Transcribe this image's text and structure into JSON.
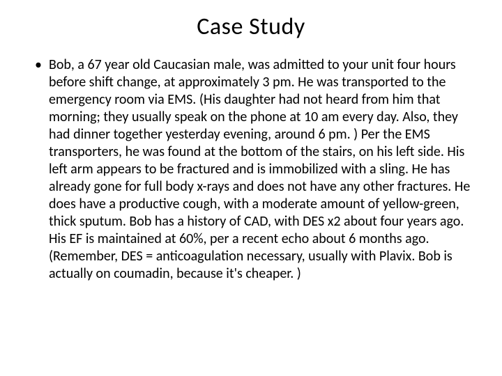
{
  "slide": {
    "title": "Case Study",
    "bullet_glyph": "•",
    "body_text": "Bob, a 67 year old Caucasian male, was admitted to your unit four hours before shift change, at approximately 3 pm. He was transported to the emergency room via EMS. (His daughter had not heard from him that morning; they usually speak on the phone at 10 am every day. Also, they had dinner together yesterday evening, around 6 pm. ) Per the EMS transporters, he was found at the bottom of the stairs, on his left side. His left arm appears to be fractured and is immobilized with a sling. He has already gone for full body x-rays and does not have any other fractures. He does have a productive cough, with a moderate amount of yellow-green, thick sputum. Bob has a history of CAD, with DES x2 about four years ago. His EF is maintained at 60%, per a recent echo about 6 months ago. (Remember, DES = anticoagulation necessary, usually with Plavix. Bob is actually on coumadin, because it's cheaper. )",
    "styles": {
      "background_color": "#ffffff",
      "text_color": "#000000",
      "title_fontsize": 34,
      "body_fontsize": 20,
      "line_height": 25,
      "font_family": "Calibri, Arial, sans-serif"
    }
  }
}
